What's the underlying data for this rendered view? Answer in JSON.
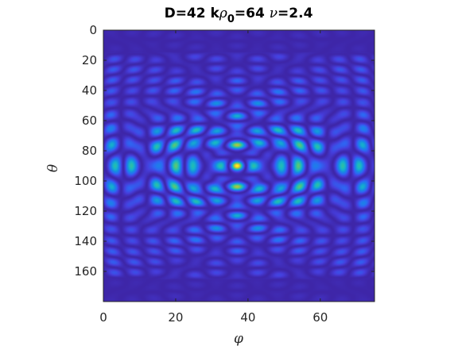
{
  "chart_data": {
    "type": "heatmap",
    "title": {
      "prefix": "D=42 k",
      "rho": "ρ",
      "sub": "0",
      "middle": "=64 ",
      "nu": "ν",
      "suffix": "=2.4"
    },
    "xlabel": "φ",
    "ylabel": "θ",
    "xlim": [
      0,
      75
    ],
    "ylim": [
      0,
      180
    ],
    "y_reversed": true,
    "xticks": [
      0,
      20,
      40,
      60
    ],
    "yticks": [
      0,
      20,
      40,
      60,
      80,
      100,
      120,
      140,
      160
    ],
    "colormap": "parula",
    "colors": {
      "low": "#3e26a8",
      "mid": "#16b4c9",
      "high": "#f9fb0e"
    },
    "peak": {
      "x": 37,
      "y": 90
    },
    "grid": false,
    "legend": "none"
  }
}
